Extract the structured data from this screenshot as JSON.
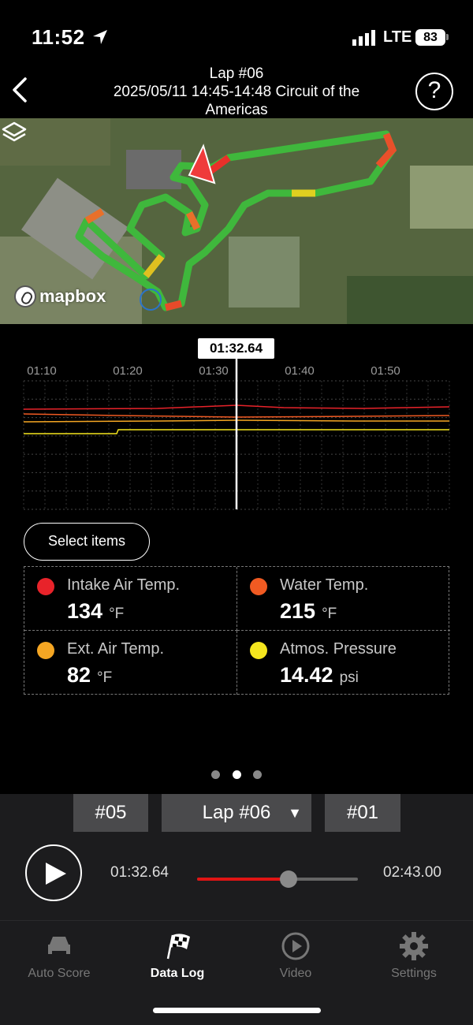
{
  "status_bar": {
    "time": "11:52",
    "carrier": "LTE",
    "battery": "83"
  },
  "header": {
    "line1": "Lap #06",
    "line2": "2025/05/11 14:45-14:48 Circuit of the Americas"
  },
  "map": {
    "attribution": "mapbox"
  },
  "chart": {
    "cursor_time": "01:32.64",
    "ticks": [
      "01:10",
      "01:20",
      "01:30",
      "01:40",
      "01:50"
    ]
  },
  "chart_data": {
    "type": "line",
    "x_ticks": [
      "01:10",
      "01:20",
      "01:30",
      "01:40",
      "01:50"
    ],
    "cursor": "01:32.64",
    "series": [
      {
        "name": "Intake Air Temp.",
        "color": "#e8232a"
      },
      {
        "name": "Water Temp.",
        "color": "#f05a22"
      },
      {
        "name": "Ext. Air Temp.",
        "color": "#f5a623"
      },
      {
        "name": "Atmos. Pressure",
        "color": "#f5e61e"
      }
    ],
    "grid": true
  },
  "select_items_label": "Select items",
  "readings": [
    {
      "label": "Intake Air Temp.",
      "value": "134",
      "unit": "°F",
      "color": "#e8232a"
    },
    {
      "label": "Water Temp.",
      "value": "215",
      "unit": "°F",
      "color": "#f05a22"
    },
    {
      "label": "Ext. Air Temp.",
      "value": "82",
      "unit": "°F",
      "color": "#f5a623"
    },
    {
      "label": "Atmos. Pressure",
      "value": "14.42",
      "unit": "psi",
      "color": "#f5e61e"
    }
  ],
  "lap_nav": {
    "prev": "#05",
    "current": "Lap #06",
    "caret": "▼",
    "next": "#01"
  },
  "playback": {
    "current_time": "01:32.64",
    "total_time": "02:43.00",
    "progress": 0.57
  },
  "tabs": [
    {
      "label": "Auto Score",
      "icon": "car-icon"
    },
    {
      "label": "Data Log",
      "icon": "checkered-flag-icon",
      "active": true
    },
    {
      "label": "Video",
      "icon": "play-circle-icon"
    },
    {
      "label": "Settings",
      "icon": "gear-icon"
    }
  ]
}
